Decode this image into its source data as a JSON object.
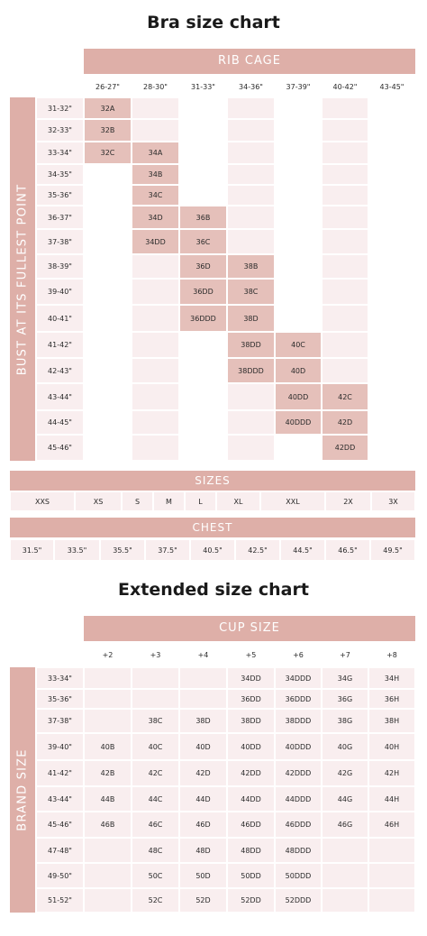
{
  "chart1": {
    "title": "Bra size chart",
    "header": "RIB CAGE",
    "side_label": "BUST AT ITS FULLEST POINT",
    "columns": [
      "26-27\"",
      "28-30\"",
      "31-33\"",
      "34-36\"",
      "37-39\"",
      "40-42\"",
      "43-45\""
    ],
    "rows": [
      {
        "label": "31-32\"",
        "cells": [
          "32A",
          "",
          "",
          "",
          "",
          "",
          ""
        ]
      },
      {
        "label": "32-33\"",
        "cells": [
          "32B",
          "",
          "",
          "",
          "",
          "",
          ""
        ]
      },
      {
        "label": "33-34\"",
        "cells": [
          "32C",
          "34A",
          "",
          "",
          "",
          "",
          ""
        ]
      },
      {
        "label": "34-35\"",
        "cells": [
          "",
          "34B",
          "",
          "",
          "",
          "",
          ""
        ]
      },
      {
        "label": "35-36\"",
        "cells": [
          "",
          "34C",
          "",
          "",
          "",
          "",
          ""
        ]
      },
      {
        "label": "36-37\"",
        "cells": [
          "",
          "34D",
          "36B",
          "",
          "",
          "",
          ""
        ]
      },
      {
        "label": "37-38\"",
        "cells": [
          "",
          "34DD",
          "36C",
          "",
          "",
          "",
          ""
        ]
      },
      {
        "label": "38-39\"",
        "cells": [
          "",
          "",
          "36D",
          "38B",
          "",
          "",
          ""
        ]
      },
      {
        "label": "39-40\"",
        "cells": [
          "",
          "",
          "36DD",
          "38C",
          "",
          "",
          ""
        ]
      },
      {
        "label": "40-41\"",
        "cells": [
          "",
          "",
          "36DDD",
          "38D",
          "",
          "",
          ""
        ]
      },
      {
        "label": "41-42\"",
        "cells": [
          "",
          "",
          "",
          "38DD",
          "40C",
          "",
          ""
        ]
      },
      {
        "label": "42-43\"",
        "cells": [
          "",
          "",
          "",
          "38DDD",
          "40D",
          "",
          ""
        ]
      },
      {
        "label": "43-44\"",
        "cells": [
          "",
          "",
          "",
          "",
          "40DD",
          "42C",
          ""
        ]
      },
      {
        "label": "44-45\"",
        "cells": [
          "",
          "",
          "",
          "",
          "40DDD",
          "42D",
          ""
        ]
      },
      {
        "label": "45-46\"",
        "cells": [
          "",
          "",
          "",
          "",
          "",
          "42DD",
          ""
        ]
      }
    ]
  },
  "sizes": {
    "header": "SIZES",
    "values": [
      "XXS",
      "XS",
      "S",
      "M",
      "L",
      "XL",
      "XXL",
      "2X",
      "3X"
    ]
  },
  "chest": {
    "header": "CHEST",
    "values": [
      "31.5\"",
      "33.5\"",
      "35.5\"",
      "37.5\"",
      "40.5\"",
      "42.5\"",
      "44.5\"",
      "46.5\"",
      "49.5\""
    ]
  },
  "chart2": {
    "title": "Extended size chart",
    "header": "CUP SIZE",
    "side_label": "BRAND SIZE",
    "columns": [
      "+2",
      "+3",
      "+4",
      "+5",
      "+6",
      "+7",
      "+8"
    ],
    "rows": [
      {
        "label": "33-34\"",
        "cells": [
          "",
          "",
          "",
          "34DD",
          "34DDD",
          "34G",
          "34H"
        ]
      },
      {
        "label": "35-36\"",
        "cells": [
          "",
          "",
          "",
          "36DD",
          "36DDD",
          "36G",
          "36H"
        ]
      },
      {
        "label": "37-38\"",
        "cells": [
          "",
          "38C",
          "38D",
          "38DD",
          "38DDD",
          "38G",
          "38H"
        ]
      },
      {
        "label": "39-40\"",
        "cells": [
          "40B",
          "40C",
          "40D",
          "40DD",
          "40DDD",
          "40G",
          "40H"
        ]
      },
      {
        "label": "41-42\"",
        "cells": [
          "42B",
          "42C",
          "42D",
          "42DD",
          "42DDD",
          "42G",
          "42H"
        ]
      },
      {
        "label": "43-44\"",
        "cells": [
          "44B",
          "44C",
          "44D",
          "44DD",
          "44DDD",
          "44G",
          "44H"
        ]
      },
      {
        "label": "45-46\"",
        "cells": [
          "46B",
          "46C",
          "46D",
          "46DD",
          "46DDD",
          "46G",
          "46H"
        ]
      },
      {
        "label": "47-48\"",
        "cells": [
          "",
          "48C",
          "48D",
          "48DD",
          "48DDD",
          "",
          ""
        ]
      },
      {
        "label": "49-50\"",
        "cells": [
          "",
          "50C",
          "50D",
          "50DD",
          "50DDD",
          "",
          ""
        ]
      },
      {
        "label": "51-52\"",
        "cells": [
          "",
          "52C",
          "52D",
          "52DD",
          "52DDD",
          "",
          ""
        ]
      }
    ]
  },
  "colors": {
    "accent": "#deafa8",
    "cell_light": "#f9eeef",
    "cell_highlight": "#e5c0ba"
  }
}
